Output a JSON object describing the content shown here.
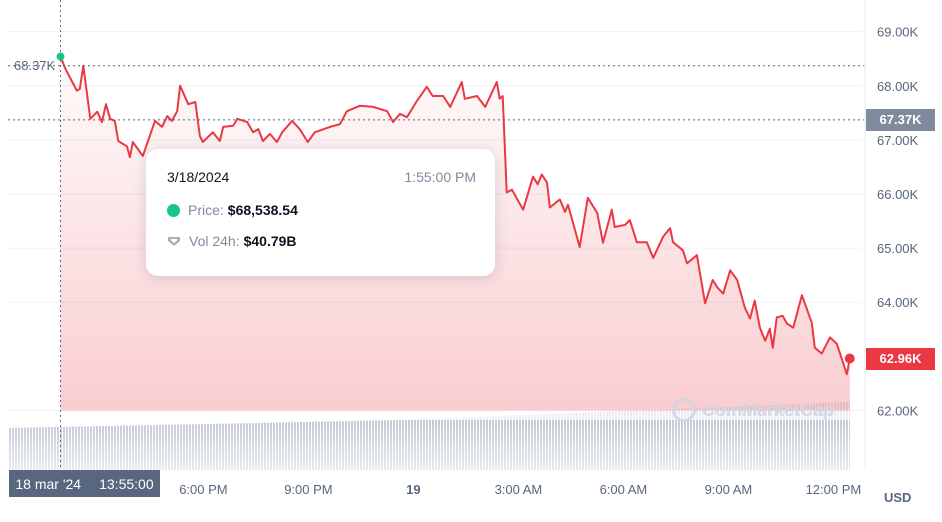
{
  "chart_data": {
    "type": "line",
    "title": "",
    "xlabel": "",
    "ylabel": "",
    "currency_label": "USD",
    "watermark": "CoinMarketCap",
    "xlim": [
      "2024-03-18T12:25",
      "2024-03-19T12:49"
    ],
    "ylim": [
      60.9,
      69.4
    ],
    "grid": true,
    "y_ticks": [
      {
        "value": 69,
        "label": "69.00K"
      },
      {
        "value": 68,
        "label": "68.00K"
      },
      {
        "value": 67,
        "label": "67.00K"
      },
      {
        "value": 66,
        "label": "66.00K"
      },
      {
        "value": 65,
        "label": "65.00K"
      },
      {
        "value": 64,
        "label": "64.00K"
      },
      {
        "value": 62,
        "label": "62.00K"
      }
    ],
    "x_ticks": [
      {
        "t": "2024-03-18T18:00",
        "label": "6:00 PM"
      },
      {
        "t": "2024-03-18T21:00",
        "label": "9:00 PM"
      },
      {
        "t": "2024-03-19T00:00",
        "label": "19",
        "bold": true
      },
      {
        "t": "2024-03-19T03:00",
        "label": "3:00 AM"
      },
      {
        "t": "2024-03-19T06:00",
        "label": "6:00 AM"
      },
      {
        "t": "2024-03-19T09:00",
        "label": "9:00 AM"
      },
      {
        "t": "2024-03-19T12:00",
        "label": "12:00 PM"
      }
    ],
    "colors": {
      "line": "#ea3943",
      "up": "#16c784",
      "axis_text": "#58667e",
      "badge_ref": "#808a9d",
      "badge_last": "#ea3943"
    },
    "reference_line": {
      "value": 67.37,
      "label": "67.37K"
    },
    "last_value": {
      "value": 62.96,
      "label": "62.96K"
    },
    "cursor": {
      "t": "2024-03-18T13:55",
      "value": 68.37,
      "value_label": "68.37K",
      "x_label_date": "18 mar '24",
      "x_label_time": "13:55:00"
    },
    "tooltip": {
      "date": "3/18/2024",
      "time": "1:55:00 PM",
      "price_label": "Price:",
      "price_value": "$68,538.54",
      "vol_label": "Vol 24h:",
      "vol_value": "$40.79B"
    },
    "series": [
      {
        "unit": "K USD",
        "points": [
          [
            "2024-03-18T13:55",
            68.54
          ],
          [
            "2024-03-18T14:03",
            68.32
          ],
          [
            "2024-03-18T14:23",
            67.91
          ],
          [
            "2024-03-18T14:28",
            67.94
          ],
          [
            "2024-03-18T14:34",
            68.37
          ],
          [
            "2024-03-18T14:46",
            67.39
          ],
          [
            "2024-03-18T14:58",
            67.52
          ],
          [
            "2024-03-18T15:06",
            67.33
          ],
          [
            "2024-03-18T15:13",
            67.66
          ],
          [
            "2024-03-18T15:20",
            67.39
          ],
          [
            "2024-03-18T15:28",
            67.35
          ],
          [
            "2024-03-18T15:34",
            66.98
          ],
          [
            "2024-03-18T15:49",
            66.88
          ],
          [
            "2024-03-18T15:54",
            66.68
          ],
          [
            "2024-03-18T15:59",
            66.96
          ],
          [
            "2024-03-18T16:16",
            66.7
          ],
          [
            "2024-03-18T16:37",
            67.35
          ],
          [
            "2024-03-18T16:49",
            67.24
          ],
          [
            "2024-03-18T16:58",
            67.44
          ],
          [
            "2024-03-18T17:06",
            67.35
          ],
          [
            "2024-03-18T17:15",
            67.53
          ],
          [
            "2024-03-18T17:20",
            68.0
          ],
          [
            "2024-03-18T17:34",
            67.66
          ],
          [
            "2024-03-18T17:46",
            67.7
          ],
          [
            "2024-03-18T17:54",
            67.07
          ],
          [
            "2024-03-18T17:59",
            66.96
          ],
          [
            "2024-03-18T18:16",
            67.14
          ],
          [
            "2024-03-18T18:28",
            66.98
          ],
          [
            "2024-03-18T18:34",
            67.24
          ],
          [
            "2024-03-18T18:51",
            67.26
          ],
          [
            "2024-03-18T18:58",
            67.39
          ],
          [
            "2024-03-18T19:15",
            67.33
          ],
          [
            "2024-03-18T19:25",
            67.14
          ],
          [
            "2024-03-18T19:34",
            67.2
          ],
          [
            "2024-03-18T19:42",
            66.98
          ],
          [
            "2024-03-18T19:54",
            67.11
          ],
          [
            "2024-03-18T20:06",
            66.96
          ],
          [
            "2024-03-18T20:15",
            67.14
          ],
          [
            "2024-03-18T20:32",
            67.35
          ],
          [
            "2024-03-18T20:45",
            67.2
          ],
          [
            "2024-03-18T20:59",
            66.96
          ],
          [
            "2024-03-18T21:11",
            67.14
          ],
          [
            "2024-03-18T21:37",
            67.24
          ],
          [
            "2024-03-18T21:54",
            67.29
          ],
          [
            "2024-03-18T22:06",
            67.53
          ],
          [
            "2024-03-18T22:28",
            67.63
          ],
          [
            "2024-03-18T22:51",
            67.61
          ],
          [
            "2024-03-18T23:15",
            67.53
          ],
          [
            "2024-03-18T23:25",
            67.33
          ],
          [
            "2024-03-18T23:37",
            67.48
          ],
          [
            "2024-03-18T23:49",
            67.42
          ],
          [
            "2024-03-19T00:06",
            67.72
          ],
          [
            "2024-03-19T00:23",
            67.98
          ],
          [
            "2024-03-19T00:33",
            67.81
          ],
          [
            "2024-03-19T00:51",
            67.81
          ],
          [
            "2024-03-19T01:03",
            67.61
          ],
          [
            "2024-03-19T01:23",
            68.07
          ],
          [
            "2024-03-19T01:28",
            67.76
          ],
          [
            "2024-03-19T01:49",
            67.81
          ],
          [
            "2024-03-19T02:03",
            67.61
          ],
          [
            "2024-03-19T02:23",
            68.07
          ],
          [
            "2024-03-19T02:28",
            67.76
          ],
          [
            "2024-03-19T02:33",
            67.81
          ],
          [
            "2024-03-19T02:40",
            66.03
          ],
          [
            "2024-03-19T02:49",
            66.08
          ],
          [
            "2024-03-19T03:08",
            65.71
          ],
          [
            "2024-03-19T03:25",
            66.32
          ],
          [
            "2024-03-19T03:33",
            66.18
          ],
          [
            "2024-03-19T03:40",
            66.36
          ],
          [
            "2024-03-19T03:49",
            66.21
          ],
          [
            "2024-03-19T03:54",
            65.75
          ],
          [
            "2024-03-19T04:11",
            65.9
          ],
          [
            "2024-03-19T04:20",
            65.67
          ],
          [
            "2024-03-19T04:25",
            65.8
          ],
          [
            "2024-03-19T04:45",
            65.02
          ],
          [
            "2024-03-19T04:59",
            65.93
          ],
          [
            "2024-03-19T05:15",
            65.65
          ],
          [
            "2024-03-19T05:25",
            65.1
          ],
          [
            "2024-03-19T05:40",
            65.71
          ],
          [
            "2024-03-19T05:45",
            65.39
          ],
          [
            "2024-03-19T06:03",
            65.43
          ],
          [
            "2024-03-19T06:11",
            65.52
          ],
          [
            "2024-03-19T06:23",
            65.11
          ],
          [
            "2024-03-19T06:40",
            65.11
          ],
          [
            "2024-03-19T06:51",
            64.82
          ],
          [
            "2024-03-19T07:08",
            65.21
          ],
          [
            "2024-03-19T07:20",
            65.37
          ],
          [
            "2024-03-19T07:25",
            65.11
          ],
          [
            "2024-03-19T07:42",
            64.96
          ],
          [
            "2024-03-19T07:49",
            64.72
          ],
          [
            "2024-03-19T08:06",
            64.87
          ],
          [
            "2024-03-19T08:20",
            63.98
          ],
          [
            "2024-03-19T08:33",
            64.41
          ],
          [
            "2024-03-19T08:42",
            64.26
          ],
          [
            "2024-03-19T08:51",
            64.16
          ],
          [
            "2024-03-19T09:03",
            64.59
          ],
          [
            "2024-03-19T09:15",
            64.41
          ],
          [
            "2024-03-19T09:28",
            63.9
          ],
          [
            "2024-03-19T09:37",
            63.7
          ],
          [
            "2024-03-19T09:45",
            64.03
          ],
          [
            "2024-03-19T09:54",
            63.53
          ],
          [
            "2024-03-19T10:03",
            63.29
          ],
          [
            "2024-03-19T10:11",
            63.51
          ],
          [
            "2024-03-19T10:16",
            63.16
          ],
          [
            "2024-03-19T10:23",
            63.72
          ],
          [
            "2024-03-19T10:33",
            63.75
          ],
          [
            "2024-03-19T10:40",
            63.61
          ],
          [
            "2024-03-19T10:51",
            63.53
          ],
          [
            "2024-03-19T11:06",
            64.13
          ],
          [
            "2024-03-19T11:23",
            63.62
          ],
          [
            "2024-03-19T11:28",
            63.16
          ],
          [
            "2024-03-19T11:40",
            63.05
          ],
          [
            "2024-03-19T11:54",
            63.35
          ],
          [
            "2024-03-19T12:06",
            63.23
          ],
          [
            "2024-03-19T12:23",
            62.67
          ],
          [
            "2024-03-19T12:28",
            62.96
          ]
        ]
      }
    ]
  }
}
